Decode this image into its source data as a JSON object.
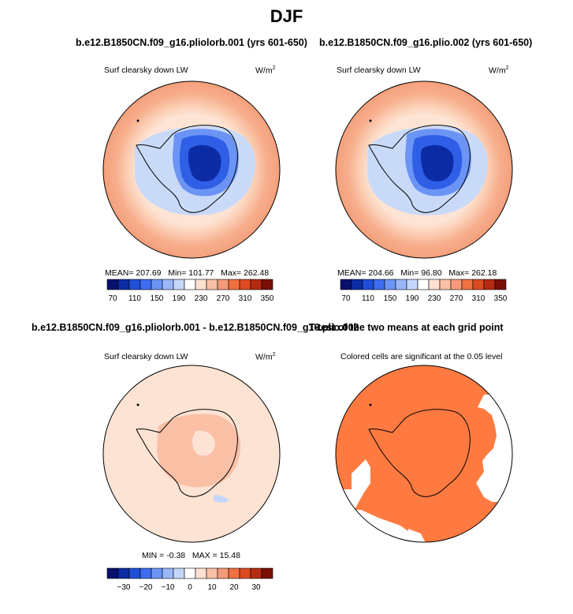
{
  "page": {
    "title": "DJF"
  },
  "panels": {
    "p1": {
      "title": "b.e12.B1850CN.f09_g16.pliolorb.001 (yrs 601-650)",
      "var_label": "Surf clearsky down LW",
      "unit": "W/m",
      "unit_exp": "2",
      "stats": {
        "mean_label": "MEAN=",
        "mean": "207.69",
        "min_label": "Min=",
        "min": "101.77",
        "max_label": "Max=",
        "max": "262.48"
      }
    },
    "p2": {
      "title": "b.e12.B1850CN.f09_g16.plio.002 (yrs 601-650)",
      "var_label": "Surf clearsky down LW",
      "unit": "W/m",
      "unit_exp": "2",
      "stats": {
        "mean_label": "MEAN=",
        "mean": "204.66",
        "min_label": "Min=",
        "min": "96.80",
        "max_label": "Max=",
        "max": "262.18"
      }
    },
    "p3": {
      "title": "b.e12.B1850CN.f09_g16.pliolorb.001 - b.e12.B1850CN.f09_g16.plio.002",
      "var_label": "Surf clearsky down LW",
      "unit": "W/m",
      "unit_exp": "2",
      "stats": {
        "min_label": "MIN =",
        "min": "-0.38",
        "max_label": "MAX =",
        "max": "15.48"
      }
    },
    "p4": {
      "title": "T-test of the two means at each grid point",
      "var_label": "Colored cells are significant at the 0.05 level"
    }
  },
  "chart_data": [
    {
      "type": "polar-contour",
      "title": "b.e12.B1850CN.f09_g16.pliolorb.001 (yrs 601-650)",
      "variable": "Surf clearsky down LW",
      "units": "W/m2",
      "mean": 207.69,
      "min": 101.77,
      "max": 262.48,
      "levels": [
        70,
        90,
        110,
        130,
        150,
        170,
        190,
        210,
        230,
        250,
        270,
        290,
        310,
        330,
        350
      ],
      "tick_labels": [
        "70",
        "110",
        "150",
        "190",
        "230",
        "270",
        "310",
        "350"
      ]
    },
    {
      "type": "polar-contour",
      "title": "b.e12.B1850CN.f09_g16.plio.002 (yrs 601-650)",
      "variable": "Surf clearsky down LW",
      "units": "W/m2",
      "mean": 204.66,
      "min": 96.8,
      "max": 262.18,
      "levels": [
        70,
        90,
        110,
        130,
        150,
        170,
        190,
        210,
        230,
        250,
        270,
        290,
        310,
        330,
        350
      ],
      "tick_labels": [
        "70",
        "110",
        "150",
        "190",
        "230",
        "270",
        "310",
        "350"
      ]
    },
    {
      "type": "polar-contour",
      "title": "b.e12.B1850CN.f09_g16.pliolorb.001 - b.e12.B1850CN.f09_g16.plio.002",
      "variable": "Surf clearsky down LW",
      "units": "W/m2",
      "min": -0.38,
      "max": 15.48,
      "levels": [
        -35,
        -30,
        -25,
        -20,
        -15,
        -10,
        -5,
        0,
        5,
        10,
        15,
        20,
        25,
        30,
        35
      ],
      "tick_labels": [
        "-30",
        "-20",
        "-10",
        "0",
        "10",
        "20",
        "30"
      ]
    },
    {
      "type": "polar-significance-mask",
      "title": "T-test of the two means at each grid point",
      "annotation": "Colored cells are significant at the 0.05 level",
      "significance_level": 0.05
    }
  ],
  "colors": {
    "scale": [
      "#08106e",
      "#0c2ca6",
      "#1f4ed8",
      "#3d6df0",
      "#6b94f5",
      "#9ab8f8",
      "#c4d7fb",
      "#ffffff",
      "#fde0d0",
      "#f9c0a6",
      "#f59b7a",
      "#f07040",
      "#dd4a22",
      "#b52b12",
      "#7a0e05"
    ],
    "ttest": "#ff7a41",
    "ocean_low": "#fde3d3",
    "ocean_mid": "#fbd2b9",
    "ocean_high": "#f8b597"
  }
}
